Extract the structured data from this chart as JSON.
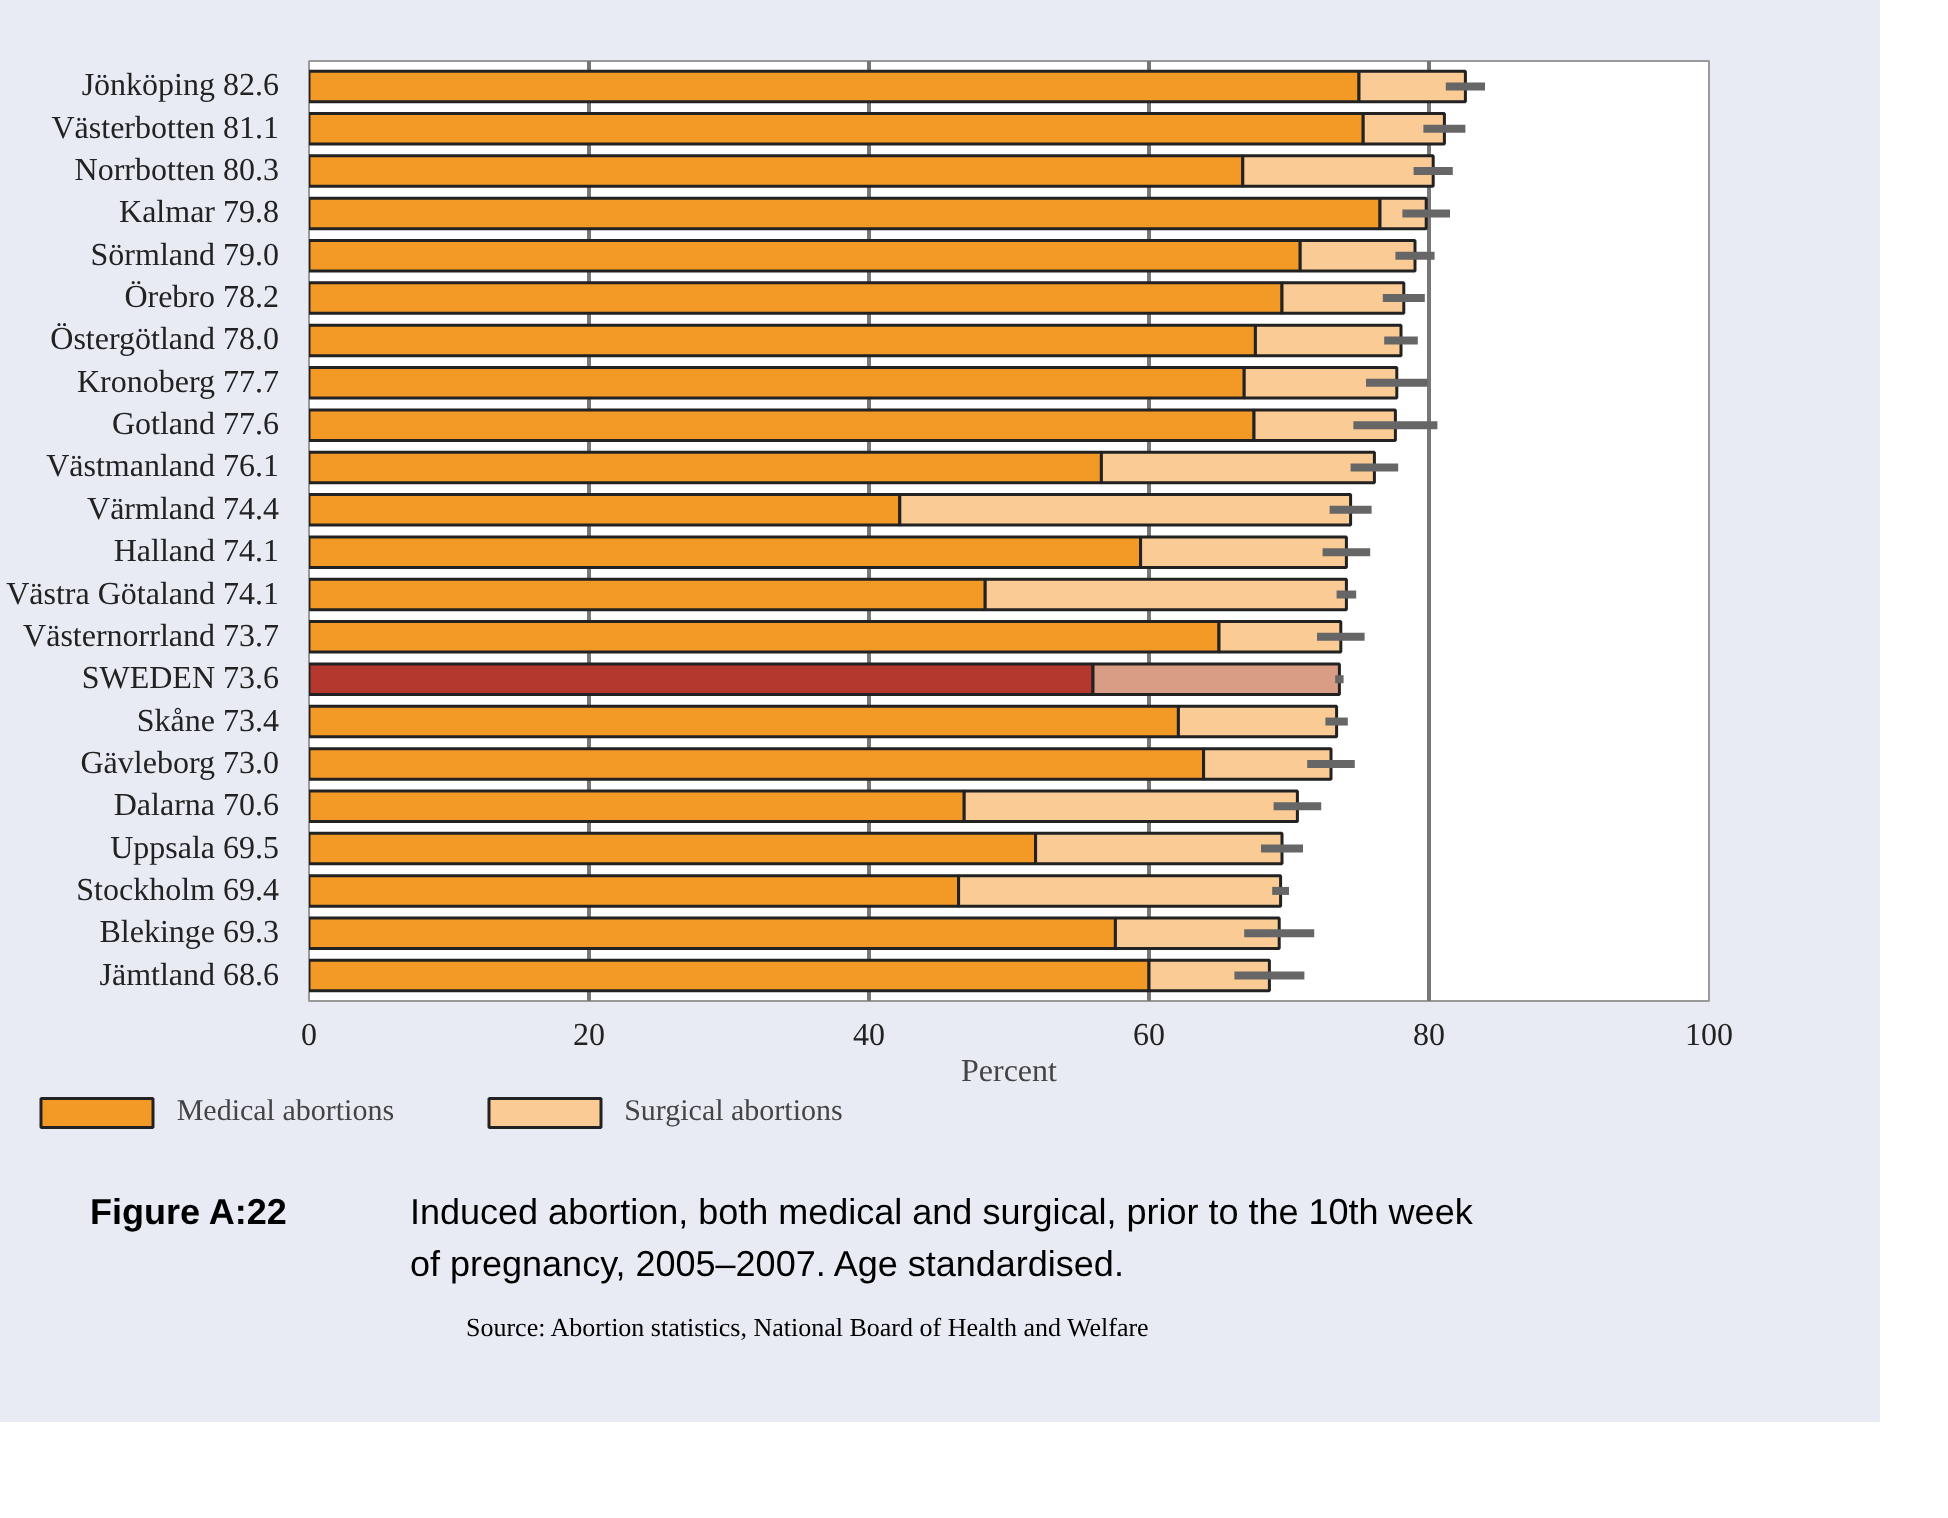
{
  "chart_data": {
    "type": "bar",
    "orientation": "horizontal",
    "stacked": true,
    "title": "Figure A:22",
    "subtitle": "Induced abortion, both medical and surgical, prior to the 10th week of pregnancy, 2005–2007. Age standardised.",
    "annotations": [
      "Source: Abortion statistics, National Board of Health and Welfare"
    ],
    "xlabel": "Percent",
    "categories": [
      "Jönköping",
      "Västerbotten",
      "Norrbotten",
      "Kalmar",
      "Sörmland",
      "Örebro",
      "Östergötland",
      "Kronoberg",
      "Gotland",
      "Västmanland",
      "Värmland",
      "Halland",
      "Västra Götaland",
      "Västernorrland",
      "SWEDEN",
      "Skåne",
      "Gävleborg",
      "Dalarna",
      "Uppsala",
      "Stockholm",
      "Blekinge",
      "Jämtland"
    ],
    "totals": [
      "82.6",
      "81.1",
      "80.3",
      "79.8",
      "79.0",
      "78.2",
      "78.0",
      "77.7",
      "77.6",
      "76.1",
      "74.4",
      "74.1",
      "74.1",
      "73.7",
      "73.6",
      "73.4",
      "73.0",
      "70.6",
      "69.5",
      "69.4",
      "69.3",
      "68.6"
    ],
    "series": [
      {
        "name": "Medical abortions",
        "color": "#f39a26",
        "colors": [
          "#f39a26",
          "#f39a26",
          "#f39a26",
          "#f39a26",
          "#f39a26",
          "#f39a26",
          "#f39a26",
          "#f39a26",
          "#f39a26",
          "#f39a26",
          "#f39a26",
          "#f39a26",
          "#f39a26",
          "#f39a26",
          "#b5382e",
          "#f39a26",
          "#f39a26",
          "#f39a26",
          "#f39a26",
          "#f39a26",
          "#f39a26",
          "#f39a26"
        ],
        "values": [
          75.0,
          75.3,
          66.7,
          76.5,
          70.8,
          69.5,
          67.6,
          66.8,
          67.5,
          56.6,
          42.2,
          59.4,
          48.3,
          65.0,
          56.0,
          62.1,
          63.9,
          46.8,
          51.9,
          46.4,
          57.6,
          60.0
        ]
      },
      {
        "name": "Surgical abortions",
        "color": "#facb94",
        "colors": [
          "#facb94",
          "#facb94",
          "#facb94",
          "#facb94",
          "#facb94",
          "#facb94",
          "#facb94",
          "#facb94",
          "#facb94",
          "#facb94",
          "#facb94",
          "#facb94",
          "#facb94",
          "#facb94",
          "#d99c84",
          "#facb94",
          "#facb94",
          "#facb94",
          "#facb94",
          "#facb94",
          "#facb94",
          "#facb94"
        ],
        "values": [
          7.6,
          5.8,
          13.6,
          3.3,
          8.2,
          8.7,
          10.4,
          10.9,
          10.1,
          19.5,
          32.2,
          14.7,
          25.8,
          8.7,
          17.6,
          11.3,
          9.1,
          23.8,
          17.6,
          23.0,
          11.7,
          8.6
        ],
        "errors": [
          1.4,
          1.5,
          1.4,
          1.7,
          1.4,
          1.5,
          1.2,
          2.2,
          3.0,
          1.7,
          1.5,
          1.7,
          0.7,
          1.7,
          0.3,
          0.8,
          1.7,
          1.7,
          1.5,
          0.6,
          2.5,
          2.5
        ]
      }
    ],
    "xlim": [
      0,
      100
    ],
    "xticks": [
      0,
      20,
      40,
      60,
      80,
      100
    ],
    "grid": "x",
    "legend": "bottom"
  }
}
